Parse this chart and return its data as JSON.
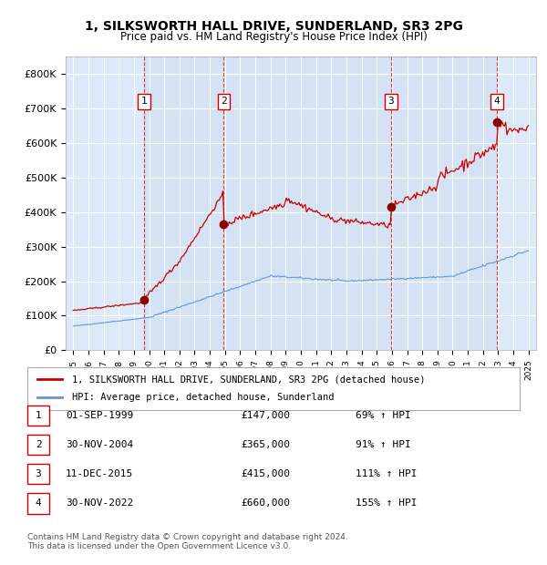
{
  "title": "1, SILKSWORTH HALL DRIVE, SUNDERLAND, SR3 2PG",
  "subtitle": "Price paid vs. HM Land Registry's House Price Index (HPI)",
  "ylim": [
    0,
    850000
  ],
  "yticks": [
    0,
    100000,
    200000,
    300000,
    400000,
    500000,
    600000,
    700000,
    800000
  ],
  "ytick_labels": [
    "£0",
    "£100K",
    "£200K",
    "£300K",
    "£400K",
    "£500K",
    "£600K",
    "£700K",
    "£800K"
  ],
  "background_color": "#dce9f8",
  "plot_bg_color": "#dce9f8",
  "grid_color": "#ffffff",
  "red_line_color": "#cc0000",
  "blue_line_color": "#6699cc",
  "sale_points": [
    {
      "date_num": 1999.67,
      "price": 147000,
      "label": "1"
    },
    {
      "date_num": 2004.92,
      "price": 365000,
      "label": "2"
    },
    {
      "date_num": 2015.95,
      "price": 415000,
      "label": "3"
    },
    {
      "date_num": 2022.92,
      "price": 660000,
      "label": "4"
    }
  ],
  "legend_red_label": "1, SILKSWORTH HALL DRIVE, SUNDERLAND, SR3 2PG (detached house)",
  "legend_blue_label": "HPI: Average price, detached house, Sunderland",
  "table_data": [
    {
      "num": "1",
      "date": "01-SEP-1999",
      "price": "£147,000",
      "hpi": "69% ↑ HPI"
    },
    {
      "num": "2",
      "date": "30-NOV-2004",
      "price": "£365,000",
      "hpi": "91% ↑ HPI"
    },
    {
      "num": "3",
      "date": "11-DEC-2015",
      "price": "£415,000",
      "hpi": "111% ↑ HPI"
    },
    {
      "num": "4",
      "date": "30-NOV-2022",
      "price": "£660,000",
      "hpi": "155% ↑ HPI"
    }
  ],
  "footnote": "Contains HM Land Registry data © Crown copyright and database right 2024.\nThis data is licensed under the Open Government Licence v3.0.",
  "xmin": 1994.5,
  "xmax": 2025.5
}
